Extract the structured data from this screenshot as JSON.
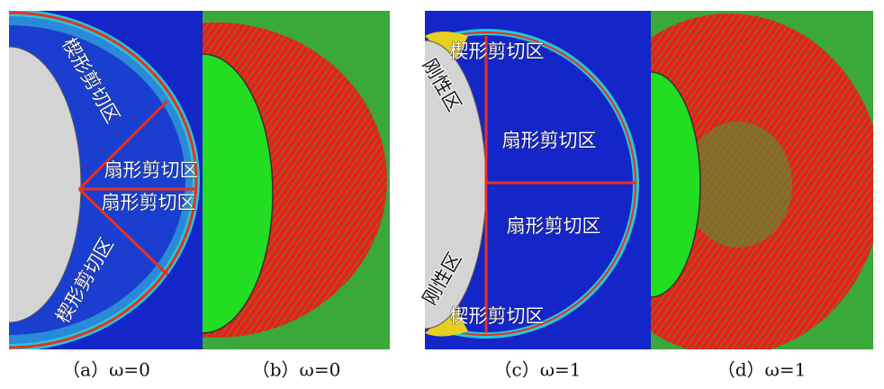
{
  "panels": [
    {
      "caption": "（a）ω=0",
      "labels": [
        "楔形剪切区",
        "扇形剪切区",
        "扇形剪切区",
        "楔形剪切区"
      ]
    },
    {
      "caption": "（b）ω=0",
      "labels": []
    },
    {
      "caption": "（c）ω=1",
      "labels": [
        "楔形剪切区",
        "刚性区",
        "扇形剪切区",
        "扇形剪切区",
        "刚性区",
        "楔形剪切区"
      ]
    },
    {
      "caption": "（d）ω=1",
      "labels": []
    }
  ]
}
